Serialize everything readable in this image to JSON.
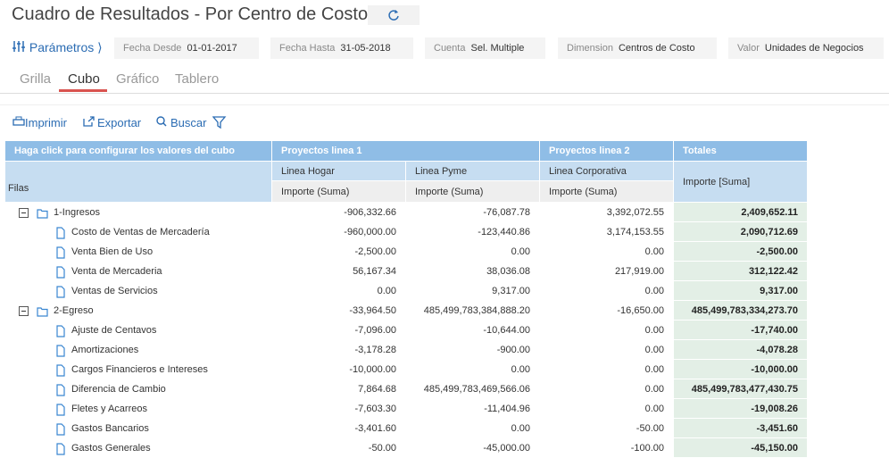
{
  "header": {
    "title": "Cuadro de Resultados - Por Centro de Costo"
  },
  "parameters": {
    "label": "Parámetros ⟩",
    "filters": [
      {
        "label": "Fecha Desde",
        "value": "01-01-2017"
      },
      {
        "label": "Fecha Hasta",
        "value": "31-05-2018"
      },
      {
        "label": "Cuenta",
        "value": "Sel. Multiple"
      },
      {
        "label": "Dimension",
        "value": "Centros de Costo"
      },
      {
        "label": "Valor",
        "value": "Unidades de Negocios"
      }
    ]
  },
  "tabs": [
    {
      "label": "Grilla",
      "active": false
    },
    {
      "label": "Cubo",
      "active": true
    },
    {
      "label": "Gráfico",
      "active": false
    },
    {
      "label": "Tablero",
      "active": false
    }
  ],
  "toolbar": [
    "Imprimir",
    "Exportar",
    "Buscar"
  ],
  "table": {
    "corner": "Haga click para configurar los valores del cubo",
    "row_header": "Filas",
    "groups": [
      {
        "label": "Proyectos linea 1",
        "columns": [
          {
            "label": "Linea Hogar",
            "measure": "Importe (Suma)"
          },
          {
            "label": "Linea Pyme",
            "measure": "Importe (Suma)"
          }
        ]
      },
      {
        "label": "Proyectos linea 2",
        "columns": [
          {
            "label": "Linea Corporativa",
            "measure": "Importe (Suma)"
          }
        ]
      }
    ],
    "totals": {
      "label": "Totales",
      "measure": "Importe [Suma]"
    },
    "rows": [
      {
        "label": "1-Ingresos",
        "level": 0,
        "values": [
          "-906,332.66",
          "-76,087.78",
          "3,392,072.55"
        ],
        "total": "2,409,652.11"
      },
      {
        "label": "Costo de Ventas de Mercadería",
        "level": 1,
        "values": [
          "-960,000.00",
          "-123,440.86",
          "3,174,153.55"
        ],
        "total": "2,090,712.69"
      },
      {
        "label": "Venta Bien de Uso",
        "level": 1,
        "values": [
          "-2,500.00",
          "0.00",
          "0.00"
        ],
        "total": "-2,500.00"
      },
      {
        "label": "Venta de Mercaderia",
        "level": 1,
        "values": [
          "56,167.34",
          "38,036.08",
          "217,919.00"
        ],
        "total": "312,122.42"
      },
      {
        "label": "Ventas de Servicios",
        "level": 1,
        "values": [
          "0.00",
          "9,317.00",
          "0.00"
        ],
        "total": "9,317.00"
      },
      {
        "label": "2-Egreso",
        "level": 0,
        "values": [
          "-33,964.50",
          "485,499,783,384,888.20",
          "-16,650.00"
        ],
        "total": "485,499,783,334,273.70"
      },
      {
        "label": "Ajuste de Centavos",
        "level": 1,
        "values": [
          "-7,096.00",
          "-10,644.00",
          "0.00"
        ],
        "total": "-17,740.00"
      },
      {
        "label": "Amortizaciones",
        "level": 1,
        "values": [
          "-3,178.28",
          "-900.00",
          "0.00"
        ],
        "total": "-4,078.28"
      },
      {
        "label": "Cargos Financieros e Intereses",
        "level": 1,
        "values": [
          "-10,000.00",
          "0.00",
          "0.00"
        ],
        "total": "-10,000.00"
      },
      {
        "label": "Diferencia de Cambio",
        "level": 1,
        "values": [
          "7,864.68",
          "485,499,783,469,566.06",
          "0.00"
        ],
        "total": "485,499,783,477,430.75"
      },
      {
        "label": "Fletes y Acarreos",
        "level": 1,
        "values": [
          "-7,603.30",
          "-11,404.96",
          "0.00"
        ],
        "total": "-19,008.26"
      },
      {
        "label": "Gastos Bancarios",
        "level": 1,
        "values": [
          "-3,401.60",
          "0.00",
          "-50.00"
        ],
        "total": "-3,451.60"
      },
      {
        "label": "Gastos Generales",
        "level": 1,
        "values": [
          "-50.00",
          "-45,000.00",
          "-100.00"
        ],
        "total": "-45,150.00"
      }
    ]
  }
}
